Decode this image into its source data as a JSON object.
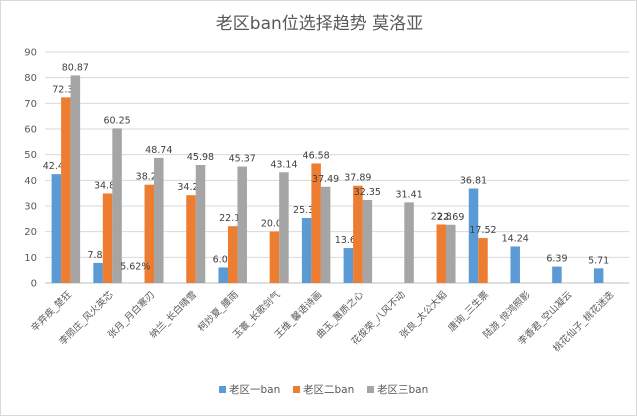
{
  "chart_data": {
    "type": "bar",
    "title": "老区ban位选择趋势 莫洛亚",
    "xlabel": "",
    "ylabel": "",
    "ylim": [
      0,
      90
    ],
    "yticks": [
      0,
      10,
      20,
      30,
      40,
      50,
      60,
      70,
      80,
      90
    ],
    "grid": true,
    "legend_position": "bottom",
    "categories": [
      "辛弃疾_楚狂",
      "李陨庄_风火英芯",
      "张月_月白寒刃",
      "纳兰_长白晴雪",
      "柯炒夏_腰雨",
      "玉寰_长歌剑气",
      "王维_馨语诗画",
      "曲玉_蕙质之心",
      "花俊荣_八风不动",
      "张良_太公大韬",
      "唐询_三生票",
      "陆游_惊鸿照影",
      "李香君_空山凝云",
      "桃花仙子_桃花迷迭"
    ],
    "series": [
      {
        "name": "老区一ban",
        "color": "#5b9bd5",
        "values": [
          42.41,
          7.83,
          null,
          null,
          6.06,
          null,
          25.34,
          13.62,
          null,
          null,
          36.81,
          14.24,
          6.39,
          5.71
        ],
        "labels": [
          "42.41",
          "7.83",
          "",
          "",
          "6.06",
          "",
          "25.34",
          "13.62",
          "",
          "",
          "36.81",
          "14.24",
          "6.39",
          "5.71"
        ]
      },
      {
        "name": "老区二ban",
        "color": "#ed7d31",
        "values": [
          72.33,
          34.89,
          38.29,
          34.21,
          22.14,
          20.08,
          46.58,
          37.89,
          null,
          22.8,
          17.52,
          null,
          null,
          null
        ],
        "labels": [
          "72.33",
          "34.89",
          "38.29",
          "34.21",
          "22.14",
          "20.08",
          "46.58",
          "37.89",
          "",
          "22.8",
          "17.52",
          "",
          "",
          ""
        ]
      },
      {
        "name": "老区三ban",
        "color": "#a5a5a5",
        "values": [
          80.87,
          60.25,
          48.74,
          45.98,
          45.37,
          43.14,
          37.49,
          32.35,
          31.41,
          22.69,
          null,
          null,
          null,
          null
        ],
        "labels": [
          "80.87",
          "60.25",
          "48.74",
          "45.98",
          "45.37",
          "43.14",
          "37.49",
          "32.35",
          "31.41",
          "22.69",
          "",
          "",
          "",
          ""
        ]
      }
    ],
    "annotations": [
      {
        "category_index": 2,
        "text": "5.62%"
      }
    ]
  }
}
